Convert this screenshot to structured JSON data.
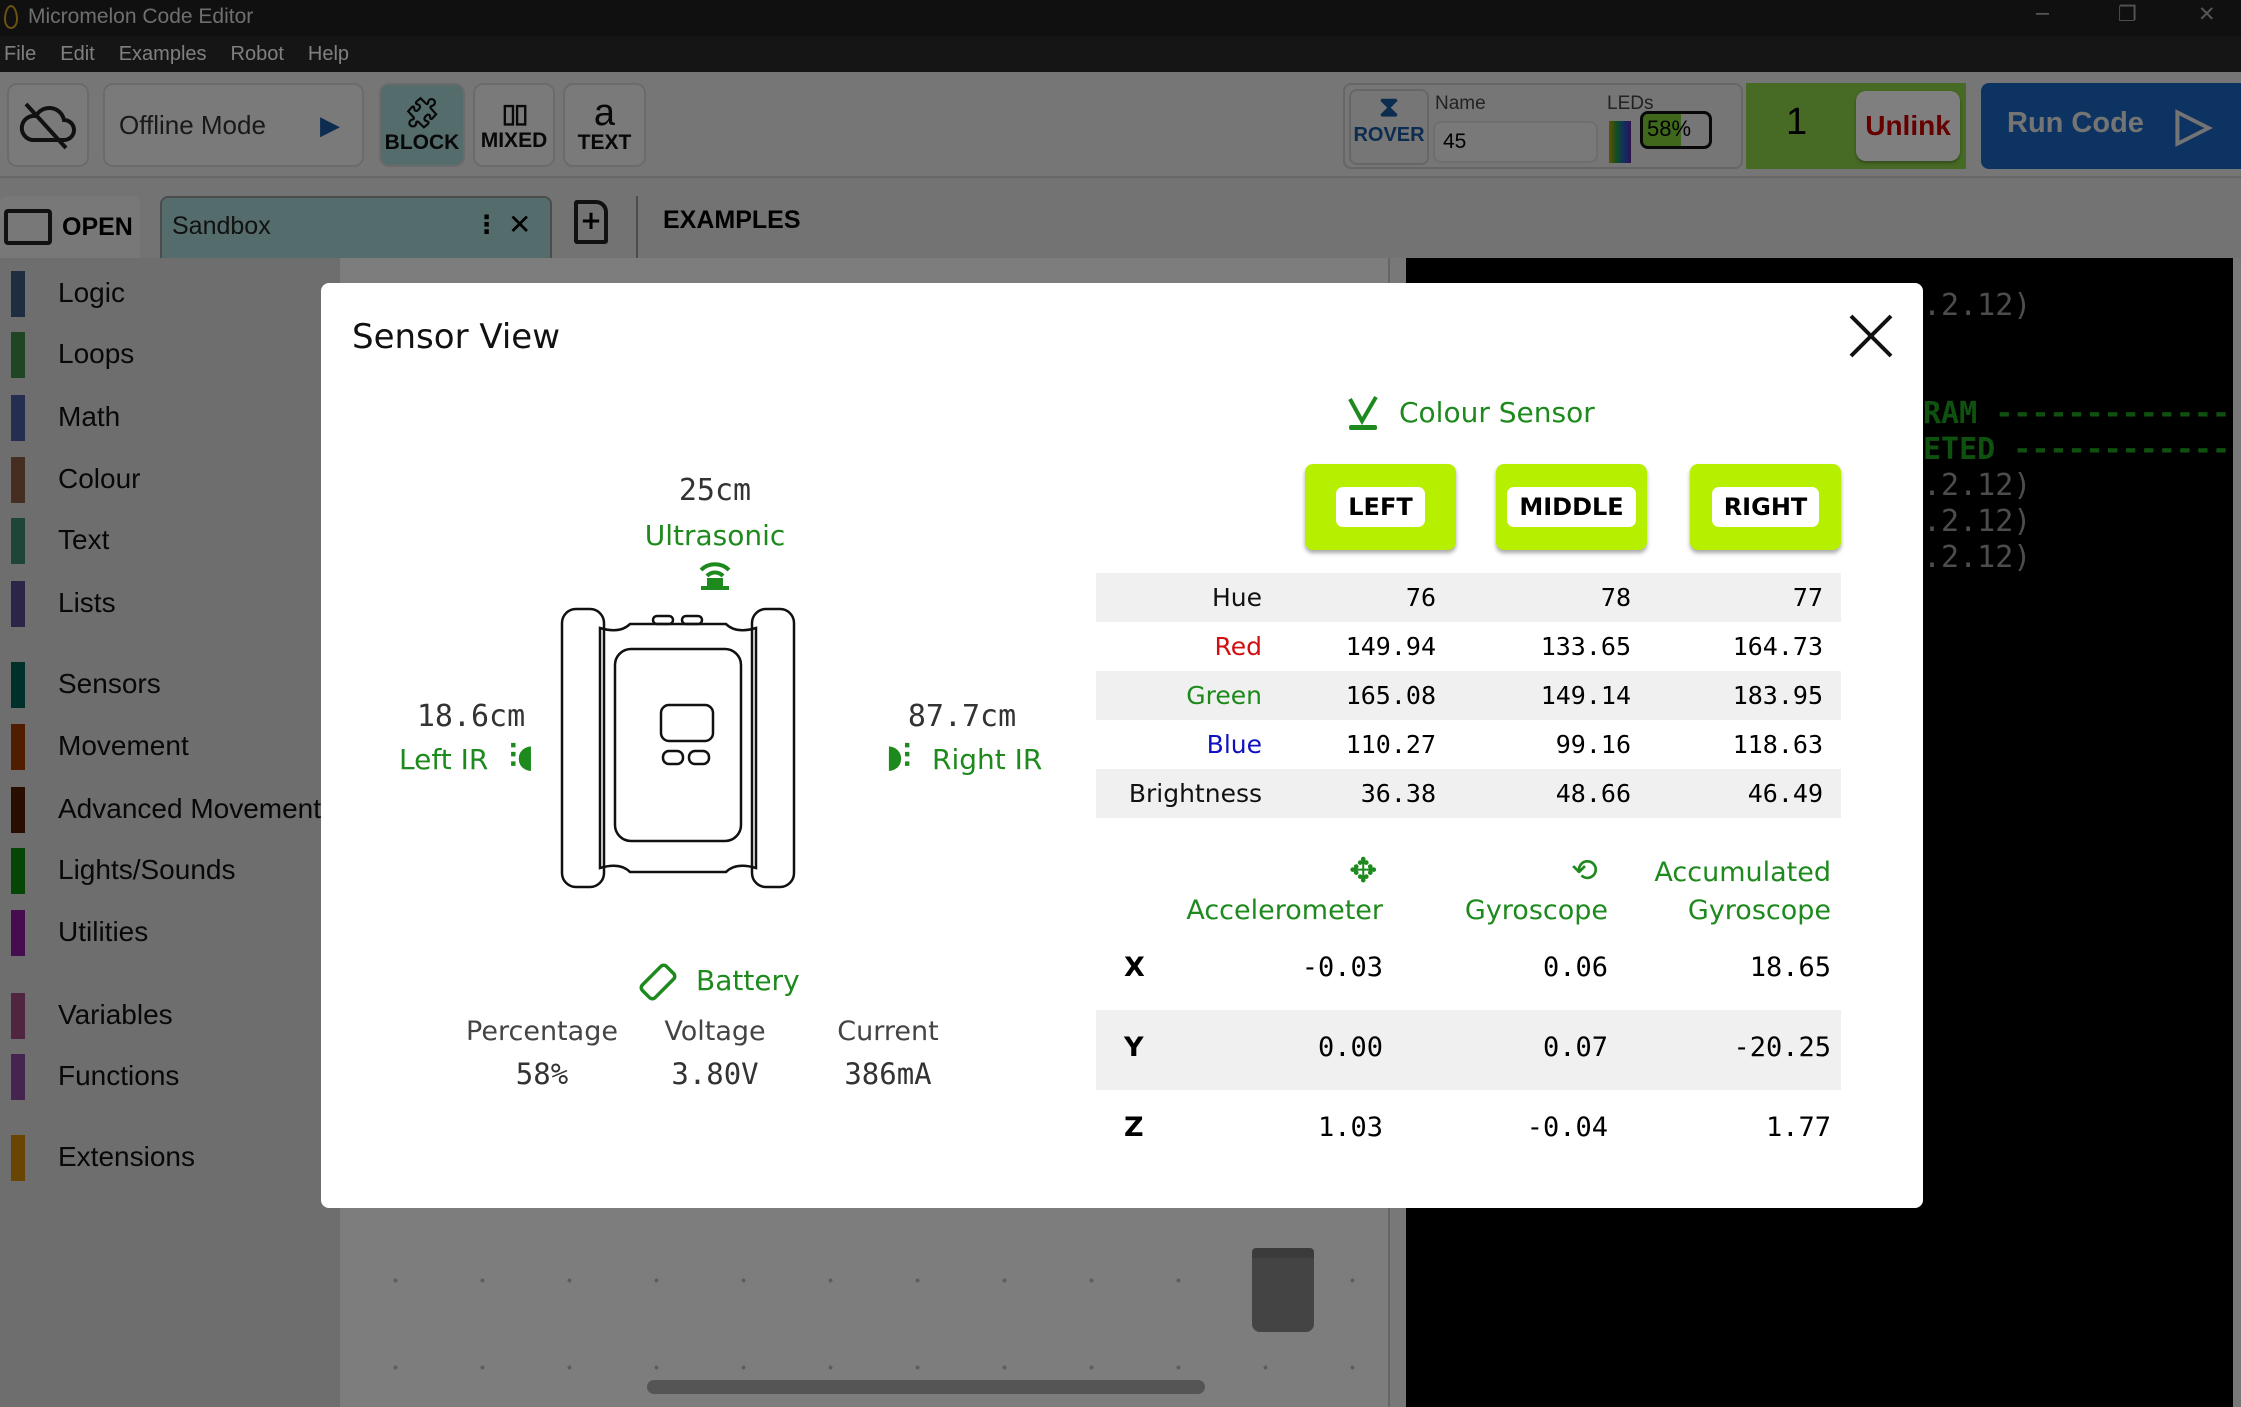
{
  "window": {
    "title": "Micromelon Code Editor",
    "controls": [
      "minimize",
      "restore",
      "close"
    ]
  },
  "menu": [
    "File",
    "Edit",
    "Examples",
    "Robot",
    "Help"
  ],
  "toolbar": {
    "mode_label": "Offline Mode",
    "view_buttons": [
      {
        "label": "BLOCK",
        "icon": "puzzle-icon",
        "active": true
      },
      {
        "label": "MIXED",
        "icon": "split-icon"
      },
      {
        "label": "TEXT",
        "icon": "text-a-icon"
      }
    ],
    "robot_type": "ROVER",
    "name_label": "Name",
    "name_value": "45",
    "leds_label": "LEDs",
    "battery": "58%",
    "battery_fraction": 0.58,
    "robot_number": "1",
    "unlink_label": "Unlink",
    "run_label": "Run Code"
  },
  "tabs": {
    "open_label": "OPEN",
    "active_tab": "Sandbox",
    "examples_label": "EXAMPLES"
  },
  "sidebar": {
    "items": [
      {
        "label": "Logic",
        "color": "#3d5a80"
      },
      {
        "label": "Loops",
        "color": "#3f8a4a"
      },
      {
        "label": "Math",
        "color": "#4a5aa0"
      },
      {
        "label": "Colour",
        "color": "#8a5a45"
      },
      {
        "label": "Text",
        "color": "#3f8a70"
      },
      {
        "label": "Lists",
        "color": "#5a4a90"
      },
      {
        "label": "Sensors",
        "color": "#006055"
      },
      {
        "label": "Movement",
        "color": "#a03a00"
      },
      {
        "label": "Advanced Movement",
        "color": "#501a00"
      },
      {
        "label": "Lights/Sounds",
        "color": "#0a8a0a"
      },
      {
        "label": "Utilities",
        "color": "#8a1aa0"
      },
      {
        "label": "Variables",
        "color": "#a04a80"
      },
      {
        "label": "Functions",
        "color": "#8a4aa0"
      },
      {
        "label": "Extensions",
        "color": "#d08a00"
      }
    ]
  },
  "console": {
    "lines": [
      {
        "text": ".2.12)",
        "color": "#9a9a9a"
      },
      {
        "text": "RAM -------------",
        "color": "#1fa31f"
      },
      {
        "text": "ETED ------------",
        "color": "#1fa31f"
      },
      {
        "text": ".2.12)",
        "color": "#9a9a9a"
      },
      {
        "text": ".2.12)",
        "color": "#9a9a9a"
      },
      {
        "text": ".2.12)",
        "color": "#9a9a9a"
      }
    ]
  },
  "modal": {
    "title": "Sensor View",
    "ultrasonic": {
      "value": "25cm",
      "label": "Ultrasonic"
    },
    "left_ir": {
      "value": "18.6cm",
      "label": "Left IR"
    },
    "right_ir": {
      "value": "87.7cm",
      "label": "Right IR"
    },
    "battery": {
      "label": "Battery",
      "headers": [
        "Percentage",
        "Voltage",
        "Current"
      ],
      "values": [
        "58%",
        "3.80V",
        "386mA"
      ]
    },
    "colour": {
      "title": "Colour Sensor",
      "buttons": [
        "LEFT",
        "MIDDLE",
        "RIGHT"
      ],
      "rows": [
        {
          "label": "Hue",
          "color": "#111111",
          "values": [
            "76",
            "78",
            "77"
          ]
        },
        {
          "label": "Red",
          "color": "#d01010",
          "values": [
            "149.94",
            "133.65",
            "164.73"
          ]
        },
        {
          "label": "Green",
          "color": "#1a8a1a",
          "values": [
            "165.08",
            "149.14",
            "183.95"
          ]
        },
        {
          "label": "Blue",
          "color": "#1010c0",
          "values": [
            "110.27",
            "99.16",
            "118.63"
          ]
        },
        {
          "label": "Brightness",
          "color": "#111111",
          "values": [
            "36.38",
            "48.66",
            "46.49"
          ]
        }
      ]
    },
    "imu": {
      "headers": [
        "Accelerometer",
        "Gyroscope",
        "Accumulated",
        "Gyroscope"
      ],
      "rows": [
        {
          "axis": "X",
          "values": [
            "-0.03",
            "0.06",
            "18.65"
          ]
        },
        {
          "axis": "Y",
          "values": [
            "0.00",
            "0.07",
            "-20.25"
          ]
        },
        {
          "axis": "Z",
          "values": [
            "1.03",
            "-0.04",
            "1.77"
          ]
        }
      ]
    }
  }
}
